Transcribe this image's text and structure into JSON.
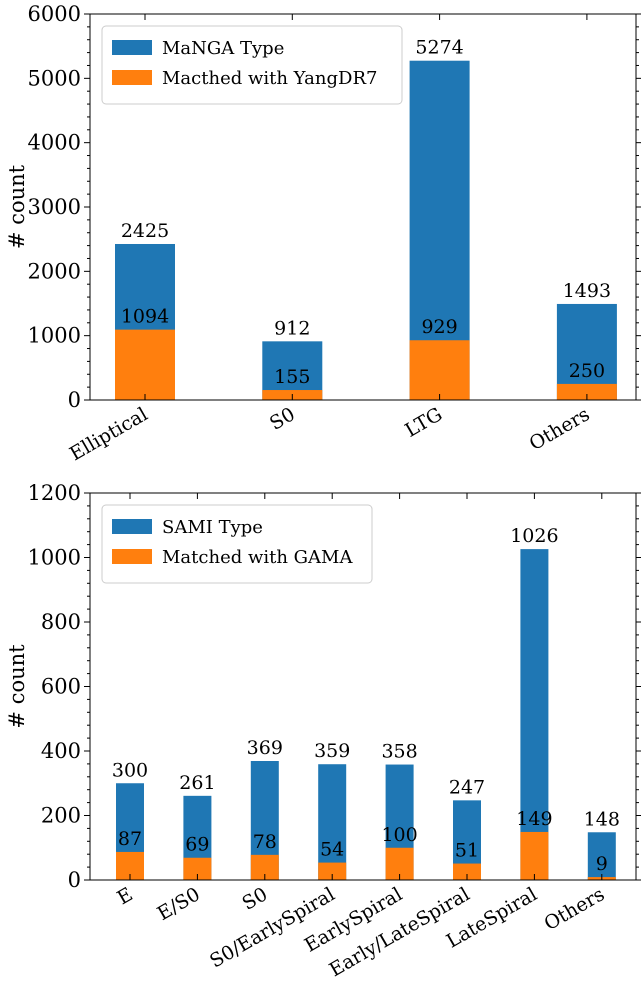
{
  "chart_data": [
    {
      "type": "bar",
      "ylabel": "# count",
      "categories": [
        "Elliptical",
        "S0",
        "LTG",
        "Others"
      ],
      "series": [
        {
          "name": "MaNGA Type",
          "color": "#1f77b4",
          "values": [
            2425,
            912,
            5274,
            1493
          ]
        },
        {
          "name": "Macthed with YangDR7",
          "color": "#ff7f0e",
          "values": [
            1094,
            155,
            929,
            250
          ]
        }
      ],
      "ylim": [
        0,
        6000
      ],
      "yticks": [
        0,
        1000,
        2000,
        3000,
        4000,
        5000,
        6000
      ],
      "legend": "upper left"
    },
    {
      "type": "bar",
      "ylabel": "# count",
      "categories": [
        "E",
        "E/S0",
        "S0",
        "S0/EarlySpiral",
        "EarlySpiral",
        "Early/LateSpiral",
        "LateSpiral",
        "Others"
      ],
      "series": [
        {
          "name": "SAMI Type",
          "color": "#1f77b4",
          "values": [
            300,
            261,
            369,
            359,
            358,
            247,
            1026,
            148
          ]
        },
        {
          "name": "Matched with GAMA",
          "color": "#ff7f0e",
          "values": [
            87,
            69,
            78,
            54,
            100,
            51,
            149,
            9
          ]
        }
      ],
      "ylim": [
        0,
        1200
      ],
      "yticks": [
        0,
        200,
        400,
        600,
        800,
        1000,
        1200
      ],
      "legend": "upper left"
    }
  ]
}
